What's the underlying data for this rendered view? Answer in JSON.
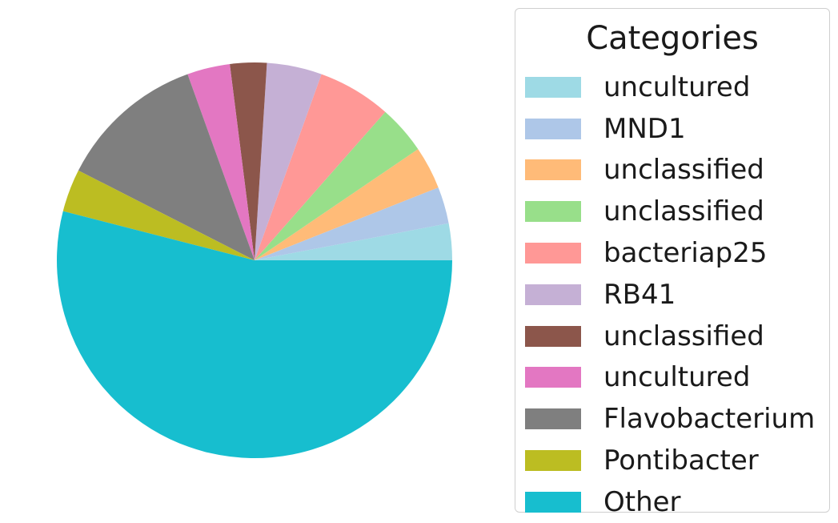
{
  "chart_data": {
    "type": "pie",
    "title": "",
    "legend_title": "Categories",
    "legend_placement": "right",
    "start_angle_deg": 0,
    "direction": "counterclockwise",
    "slices": [
      {
        "label": "uncultured",
        "value": 3.0,
        "color": "#9edae5"
      },
      {
        "label": "MND1",
        "value": 3.0,
        "color": "#aec7e8"
      },
      {
        "label": "unclassified",
        "value": 3.5,
        "color": "#ffbb78"
      },
      {
        "label": "unclassified",
        "value": 4.0,
        "color": "#98df8a"
      },
      {
        "label": "bacteriap25",
        "value": 6.0,
        "color": "#ff9896"
      },
      {
        "label": "RB41",
        "value": 4.5,
        "color": "#c5b0d5"
      },
      {
        "label": "unclassified",
        "value": 3.0,
        "color": "#8c564b"
      },
      {
        "label": "uncultured",
        "value": 3.5,
        "color": "#e377c2"
      },
      {
        "label": "Flavobacterium",
        "value": 12.0,
        "color": "#7f7f7f"
      },
      {
        "label": "Pontibacter",
        "value": 3.5,
        "color": "#bcbd22"
      },
      {
        "label": "Other",
        "value": 54.0,
        "color": "#17becf"
      }
    ]
  }
}
